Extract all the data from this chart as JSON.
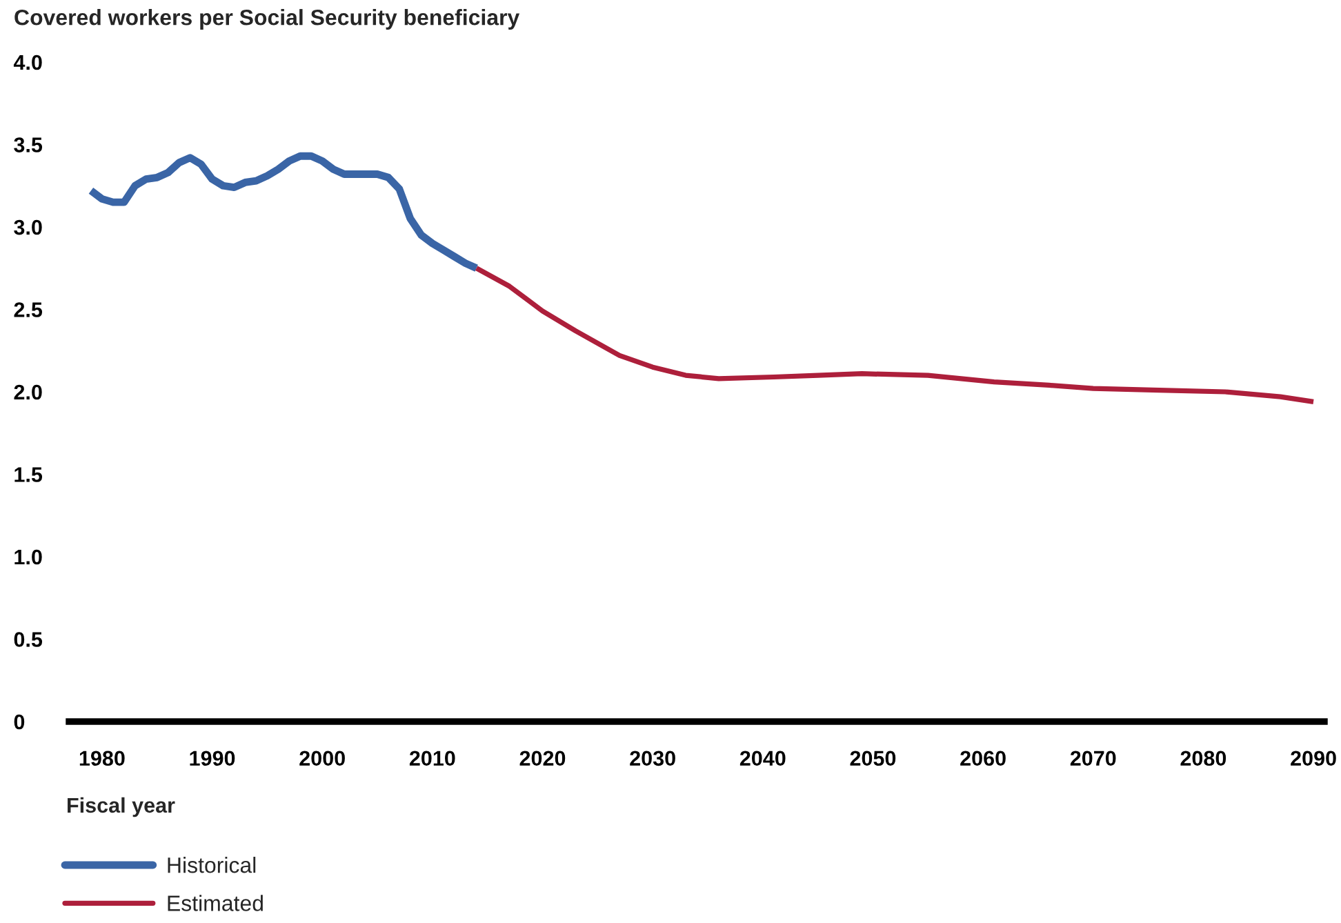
{
  "chart_data": {
    "type": "line",
    "title": "Covered workers per Social Security beneficiary",
    "xlabel": "Fiscal year",
    "series": [
      {
        "name": "Historical",
        "color": "#3a65a6",
        "x": [
          1979,
          1980,
          1981,
          1982,
          1983,
          1984,
          1985,
          1986,
          1987,
          1988,
          1989,
          1990,
          1991,
          1992,
          1993,
          1994,
          1995,
          1996,
          1997,
          1998,
          1999,
          2000,
          2001,
          2002,
          2003,
          2004,
          2005,
          2006,
          2007,
          2008,
          2009,
          2010,
          2011,
          2012,
          2013,
          2014
        ],
        "values": [
          3.22,
          3.17,
          3.15,
          3.15,
          3.25,
          3.29,
          3.3,
          3.33,
          3.39,
          3.42,
          3.38,
          3.29,
          3.25,
          3.24,
          3.27,
          3.28,
          3.31,
          3.35,
          3.4,
          3.43,
          3.43,
          3.4,
          3.35,
          3.32,
          3.32,
          3.32,
          3.32,
          3.3,
          3.23,
          3.05,
          2.95,
          2.9,
          2.86,
          2.82,
          2.78,
          2.75
        ]
      },
      {
        "name": "Estimated",
        "color": "#ad1f3b",
        "x": [
          2014,
          2017,
          2020,
          2023,
          2027,
          2030,
          2033,
          2036,
          2041,
          2045,
          2049,
          2055,
          2061,
          2066,
          2070,
          2076,
          2082,
          2087,
          2090
        ],
        "values": [
          2.75,
          2.64,
          2.49,
          2.37,
          2.22,
          2.15,
          2.1,
          2.08,
          2.09,
          2.1,
          2.11,
          2.1,
          2.06,
          2.04,
          2.02,
          2.01,
          2.0,
          1.97,
          1.94
        ]
      }
    ],
    "xlim": [
      1977,
      2091
    ],
    "xticks": [
      1980,
      1990,
      2000,
      2010,
      2020,
      2030,
      2040,
      2050,
      2060,
      2070,
      2080,
      2090
    ],
    "ylim": [
      0,
      4
    ],
    "yticks": [
      0,
      0.5,
      {
        "value": 1,
        "label": "1.0"
      },
      1.5,
      {
        "value": 2,
        "label": "2.0"
      },
      2.5,
      {
        "value": 3,
        "label": "3.0"
      },
      3.5,
      {
        "value": 4,
        "label": "4.0"
      }
    ],
    "grid": false,
    "legend": "bottom left",
    "marker": "none",
    "line_style": "solid"
  }
}
